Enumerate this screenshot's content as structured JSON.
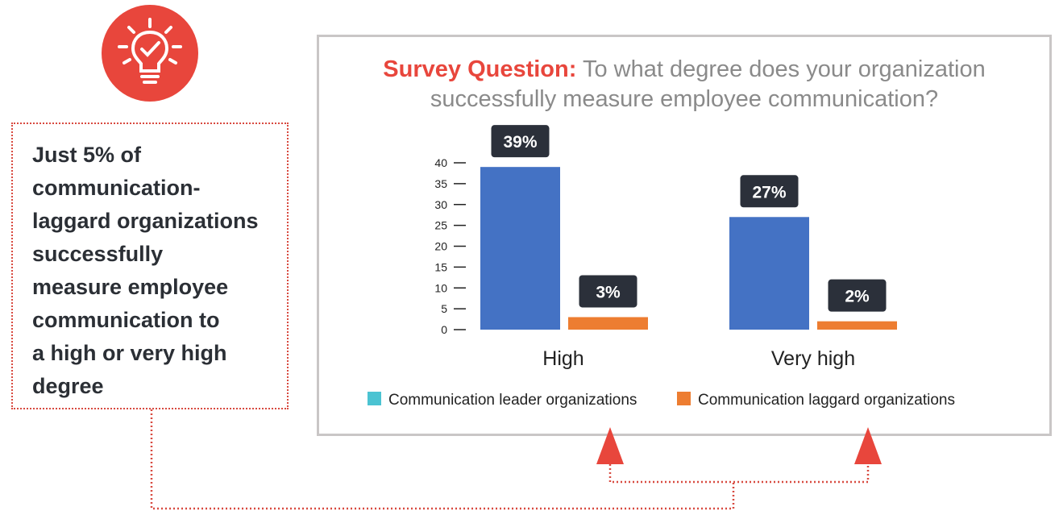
{
  "callout": {
    "lines": [
      "Just 5% of",
      "communication-",
      "laggard organizations",
      "successfully",
      "measure employee",
      "communication to",
      "a high or very high",
      "degree"
    ]
  },
  "question": {
    "lead": "Survey Question:",
    "text": " To what degree does your organization successfully measure employee communication?"
  },
  "icon": "lightbulb-check-icon",
  "colors": {
    "accent_red": "#e8463c",
    "leader_bar": "#4472c4",
    "leader_legend": "#4bc3d2",
    "laggard": "#ed7d31",
    "label_bg": "#2b303a"
  },
  "chart_data": {
    "type": "bar",
    "categories": [
      "High",
      "Very high"
    ],
    "series": [
      {
        "name": "Communication leader organizations",
        "values": [
          39,
          27
        ],
        "labels": [
          "39%",
          "27%"
        ]
      },
      {
        "name": "Communication laggard organizations",
        "values": [
          3,
          2
        ],
        "labels": [
          "3%",
          "2%"
        ]
      }
    ],
    "yticks": [
      "0",
      "5",
      "10",
      "15",
      "20",
      "25",
      "30",
      "35",
      "40"
    ],
    "ylim": [
      0,
      40
    ],
    "legend": "bottom"
  }
}
